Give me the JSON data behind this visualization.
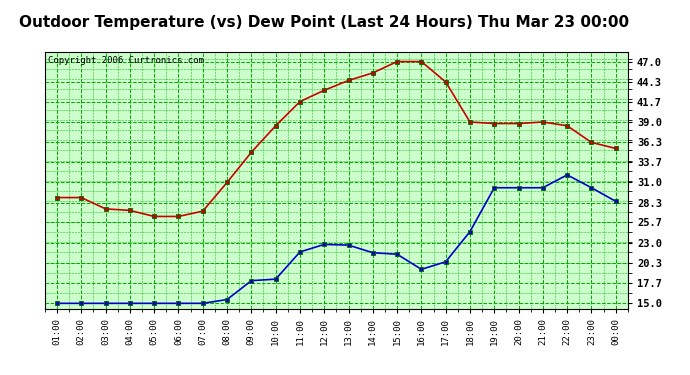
{
  "title": "Outdoor Temperature (vs) Dew Point (Last 24 Hours) Thu Mar 23 00:00",
  "copyright": "Copyright 2006 Curtronics.com",
  "x_labels": [
    "01:00",
    "02:00",
    "03:00",
    "04:00",
    "05:00",
    "06:00",
    "07:00",
    "08:00",
    "09:00",
    "10:00",
    "11:00",
    "12:00",
    "13:00",
    "14:00",
    "15:00",
    "16:00",
    "17:00",
    "18:00",
    "19:00",
    "20:00",
    "21:00",
    "22:00",
    "23:00",
    "00:00"
  ],
  "temp_values": [
    29.0,
    29.0,
    27.5,
    27.3,
    26.5,
    26.5,
    27.2,
    31.0,
    35.0,
    38.5,
    41.7,
    43.2,
    44.5,
    45.5,
    47.0,
    47.0,
    44.3,
    39.0,
    38.8,
    38.8,
    39.0,
    38.5,
    36.3,
    35.5
  ],
  "dew_values": [
    15.0,
    15.0,
    15.0,
    15.0,
    15.0,
    15.0,
    15.0,
    15.5,
    18.0,
    18.2,
    21.8,
    22.8,
    22.7,
    21.7,
    21.5,
    19.5,
    20.5,
    24.5,
    30.3,
    30.3,
    30.3,
    32.0,
    30.3,
    28.5
  ],
  "temp_color": "#cc0000",
  "dew_color": "#0000cc",
  "plot_bg": "#ccffcc",
  "outer_bg": "#ffffff",
  "grid_color": "#00aa00",
  "title_fontsize": 11,
  "yticks": [
    15.0,
    17.7,
    20.3,
    23.0,
    25.7,
    28.3,
    31.0,
    33.7,
    36.3,
    39.0,
    41.7,
    44.3,
    47.0
  ],
  "ylim": [
    14.2,
    48.2
  ],
  "marker": "s",
  "marker_size": 3,
  "line_width": 1.2
}
